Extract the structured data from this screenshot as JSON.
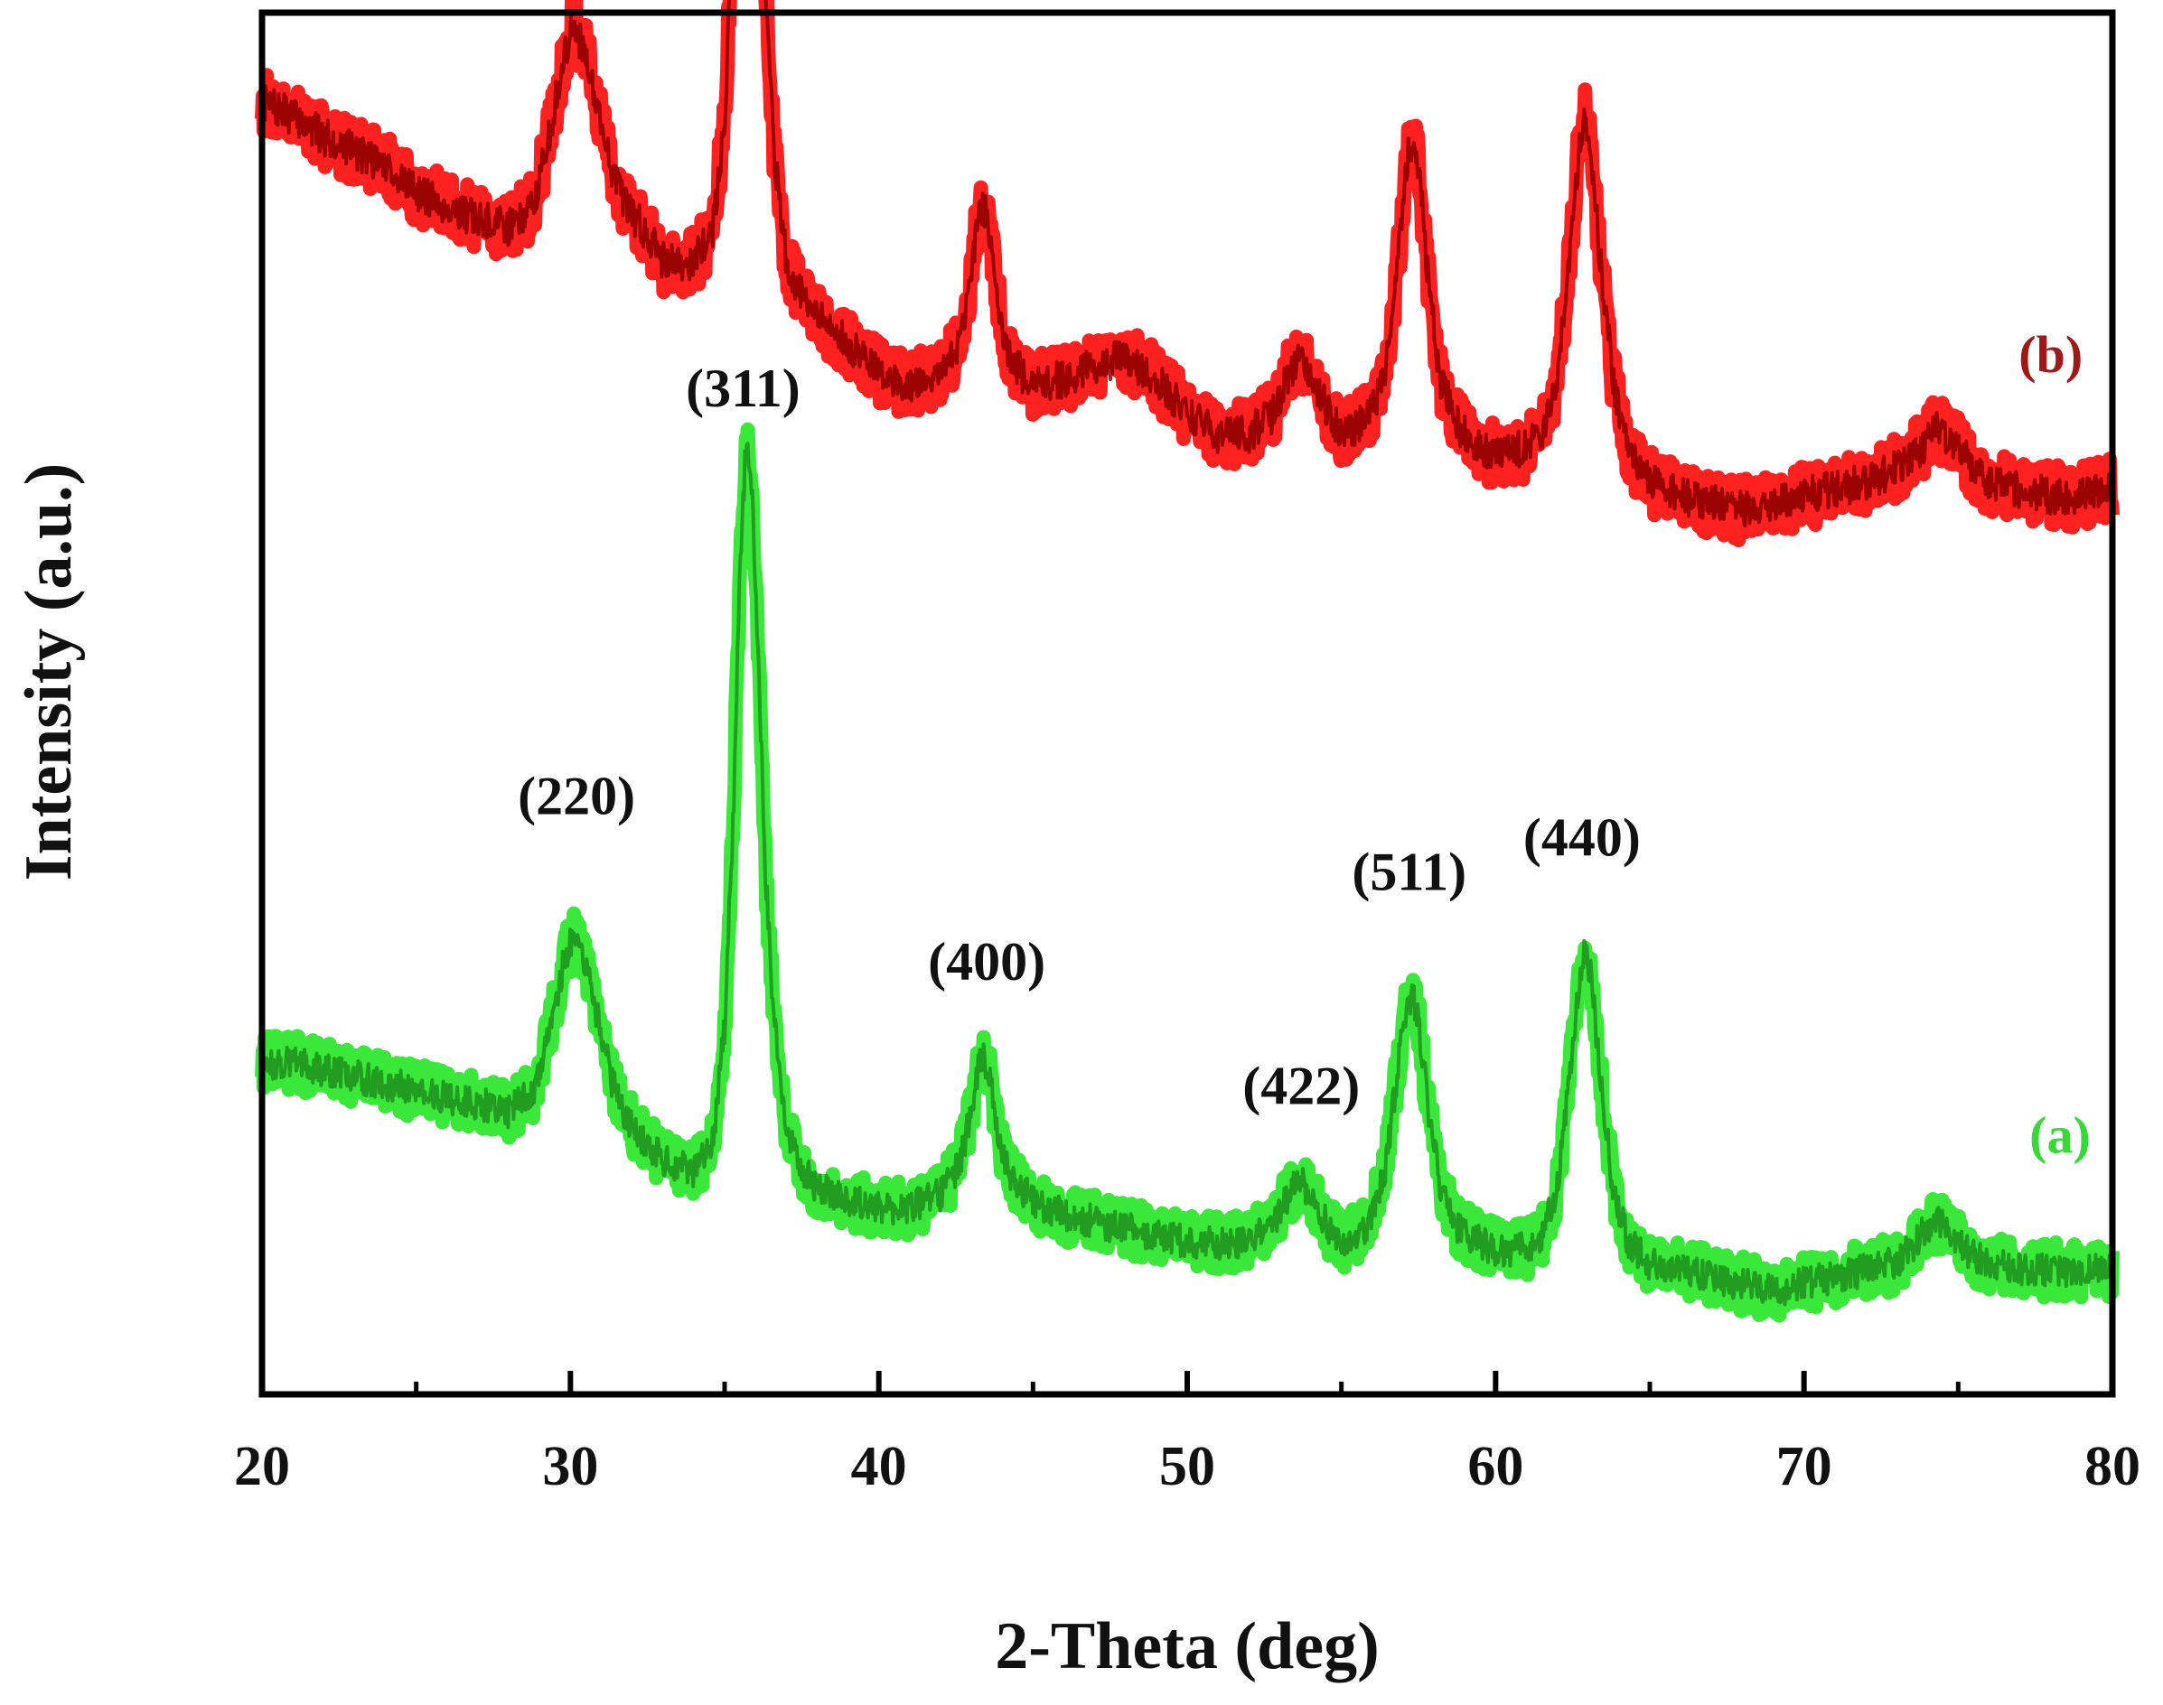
{
  "chart_data": {
    "type": "line",
    "title": "",
    "xlabel": "2-Theta (deg)",
    "ylabel": "Intensity (a.u.)",
    "xlim": [
      20,
      80
    ],
    "ylim": [
      0,
      2.0
    ],
    "xticks": [
      20,
      30,
      40,
      50,
      60,
      70,
      80
    ],
    "grid": false,
    "yticks_visible": false,
    "series": [
      {
        "name": "(b)",
        "color": "#ff2020",
        "edge_color": "#8b0000",
        "offset": 0.92,
        "noise": 0.045,
        "seed": 7,
        "x": [
          20,
          21,
          22,
          23,
          24,
          25,
          26,
          27,
          28,
          28.8,
          29.4,
          29.8,
          30.1,
          30.5,
          30.9,
          31.3,
          31.8,
          32.5,
          33,
          34,
          34.6,
          35,
          35.3,
          35.5,
          35.7,
          35.9,
          36.1,
          36.3,
          36.6,
          37,
          37.6,
          38,
          39,
          40,
          41,
          42,
          42.6,
          43,
          43.2,
          43.4,
          43.6,
          43.8,
          44.2,
          45,
          46,
          47,
          48,
          49,
          50,
          51,
          52,
          52.8,
          53.3,
          53.7,
          54.1,
          54.6,
          55,
          55.8,
          56.4,
          56.8,
          57.1,
          57.3,
          57.5,
          57.8,
          58.2,
          58.8,
          59.5,
          60,
          61,
          61.5,
          62,
          62.4,
          62.7,
          62.9,
          63.1,
          63.4,
          63.8,
          64.3,
          65,
          66,
          67,
          68,
          69,
          70,
          71,
          72,
          73,
          73.8,
          74.3,
          74.8,
          75.5,
          76,
          77,
          78,
          79,
          80
        ],
        "y": [
          0.95,
          0.93,
          0.9,
          0.88,
          0.86,
          0.82,
          0.8,
          0.78,
          0.77,
          0.8,
          0.92,
          1.02,
          1.06,
          1.02,
          0.94,
          0.86,
          0.8,
          0.76,
          0.72,
          0.72,
          0.76,
          0.92,
          1.25,
          1.6,
          1.81,
          1.76,
          1.5,
          1.15,
          0.88,
          0.72,
          0.66,
          0.64,
          0.6,
          0.56,
          0.54,
          0.56,
          0.6,
          0.7,
          0.78,
          0.8,
          0.76,
          0.68,
          0.58,
          0.54,
          0.55,
          0.57,
          0.58,
          0.55,
          0.5,
          0.47,
          0.47,
          0.5,
          0.56,
          0.58,
          0.55,
          0.5,
          0.47,
          0.49,
          0.55,
          0.7,
          0.86,
          0.9,
          0.86,
          0.7,
          0.55,
          0.48,
          0.45,
          0.44,
          0.45,
          0.47,
          0.55,
          0.72,
          0.88,
          0.93,
          0.88,
          0.72,
          0.55,
          0.44,
          0.4,
          0.38,
          0.37,
          0.36,
          0.37,
          0.38,
          0.39,
          0.4,
          0.42,
          0.45,
          0.48,
          0.46,
          0.42,
          0.4,
          0.39,
          0.38,
          0.38,
          0.39
        ]
      },
      {
        "name": "(a)",
        "color": "#39e839",
        "edge_color": "#1f8f1f",
        "offset": 0.08,
        "noise": 0.04,
        "seed": 13,
        "x": [
          20,
          21,
          22,
          23,
          24,
          25,
          26,
          27,
          28,
          28.8,
          29.4,
          29.8,
          30.1,
          30.5,
          30.9,
          31.3,
          31.8,
          32.5,
          33,
          34,
          34.6,
          35,
          35.3,
          35.5,
          35.7,
          35.9,
          36.1,
          36.3,
          36.6,
          37,
          37.6,
          38,
          39,
          40,
          41,
          42,
          42.6,
          43,
          43.2,
          43.4,
          43.6,
          43.8,
          44.2,
          45,
          46,
          47,
          48,
          49,
          50,
          51,
          52,
          52.8,
          53.3,
          53.7,
          54.1,
          54.6,
          55,
          55.8,
          56.4,
          56.8,
          57.1,
          57.3,
          57.5,
          57.8,
          58.2,
          58.8,
          59.5,
          60,
          61,
          61.5,
          62,
          62.4,
          62.7,
          62.9,
          63.1,
          63.4,
          63.8,
          64.3,
          65,
          66,
          67,
          68,
          69,
          70,
          71,
          72,
          73,
          73.8,
          74.3,
          74.8,
          75.5,
          76,
          77,
          78,
          79,
          80
        ],
        "y": [
          0.4,
          0.4,
          0.39,
          0.38,
          0.37,
          0.36,
          0.35,
          0.34,
          0.33,
          0.36,
          0.46,
          0.55,
          0.58,
          0.54,
          0.46,
          0.38,
          0.32,
          0.28,
          0.26,
          0.24,
          0.28,
          0.45,
          0.78,
          1.12,
          1.3,
          1.22,
          0.98,
          0.7,
          0.46,
          0.3,
          0.24,
          0.22,
          0.2,
          0.19,
          0.19,
          0.21,
          0.25,
          0.33,
          0.39,
          0.41,
          0.38,
          0.31,
          0.24,
          0.2,
          0.18,
          0.17,
          0.16,
          0.15,
          0.14,
          0.14,
          0.14,
          0.17,
          0.21,
          0.23,
          0.2,
          0.16,
          0.14,
          0.16,
          0.24,
          0.38,
          0.48,
          0.5,
          0.46,
          0.34,
          0.22,
          0.16,
          0.14,
          0.13,
          0.13,
          0.15,
          0.22,
          0.38,
          0.52,
          0.56,
          0.52,
          0.38,
          0.22,
          0.14,
          0.11,
          0.1,
          0.09,
          0.08,
          0.07,
          0.08,
          0.09,
          0.1,
          0.11,
          0.15,
          0.17,
          0.15,
          0.12,
          0.11,
          0.1,
          0.1,
          0.1,
          0.1
        ]
      }
    ],
    "annotations": [
      {
        "text": "(311)",
        "x": 35.6,
        "y": 1.43
      },
      {
        "text": "(220)",
        "x": 30.2,
        "y": 0.84
      },
      {
        "text": "(400)",
        "x": 43.5,
        "y": 0.6
      },
      {
        "text": "(422)",
        "x": 53.7,
        "y": 0.42
      },
      {
        "text": "(511)",
        "x": 57.2,
        "y": 0.73
      },
      {
        "text": "(440)",
        "x": 62.8,
        "y": 0.78
      }
    ],
    "series_labels": [
      {
        "text": "(b)",
        "x": 78.0,
        "y": 1.48,
        "color": "#a01818"
      },
      {
        "text": "(a)",
        "x": 78.3,
        "y": 0.35,
        "color": "#39d839"
      }
    ]
  }
}
